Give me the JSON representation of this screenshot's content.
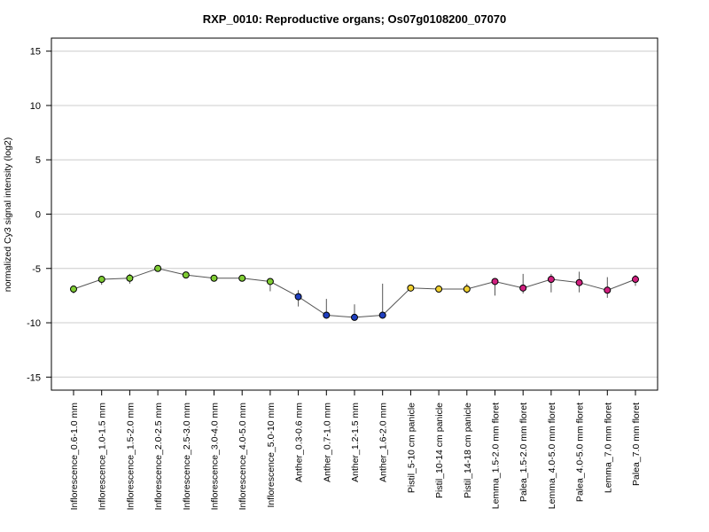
{
  "chart_data": {
    "type": "line",
    "title": "RXP_0010: Reproductive organs; Os07g0108200_07070",
    "xlabel": "",
    "ylabel": "normalized Cy3 signal intensity (log2)",
    "ylim": [
      -16.2,
      16.2
    ],
    "yticks": [
      15,
      10,
      5,
      0,
      -5,
      -10,
      -15
    ],
    "grid": true,
    "categories": [
      "Inflorescence_0.6-1.0 mm",
      "Inflorescence_1.0-1.5 mm",
      "Inflorescence_1.5-2.0 mm",
      "Inflorescence_2.0-2.5 mm",
      "Inflorescence_2.5-3.0 mm",
      "Inflorescence_3.0-4.0 mm",
      "Inflorescence_4.0-5.0 mm",
      "Inflorescence_5.0-10 mm",
      "Anther_0.3-0.6 mm",
      "Anther_0.7-1.0 mm",
      "Anther_1.2-1.5 mm",
      "Anther_1.6-2.0 mm",
      "Pistil_5-10 cm panicle",
      "Pistil_10-14 cm panicle",
      "Pistil_14-18 cm panicle",
      "Lemma_1.5-2.0 mm floret",
      "Palea_1.5-2.0 mm floret",
      "Lemma_4.0-5.0 mm floret",
      "Palea_4.0-5.0 mm floret",
      "Lemma_7.0 mm floret",
      "Palea_7.0 mm floret"
    ],
    "values": [
      -6.9,
      -6.0,
      -5.9,
      -5.0,
      -5.6,
      -5.9,
      -5.9,
      -6.2,
      -7.6,
      -9.3,
      -9.5,
      -9.3,
      -6.8,
      -6.9,
      -6.9,
      -6.2,
      -6.8,
      -6.0,
      -6.3,
      -7.0,
      -6.0
    ],
    "error_low": [
      -7.3,
      -6.5,
      -6.4,
      -5.1,
      -5.8,
      -6.0,
      -6.0,
      -7.1,
      -8.5,
      -9.6,
      -9.8,
      -9.5,
      -7.0,
      -7.0,
      -7.3,
      -7.5,
      -7.3,
      -7.2,
      -7.2,
      -7.7,
      -6.6
    ],
    "error_high": [
      -6.7,
      -5.7,
      -5.5,
      -4.8,
      -5.4,
      -5.7,
      -5.7,
      -5.9,
      -7.0,
      -7.8,
      -8.3,
      -6.4,
      -6.6,
      -6.8,
      -6.4,
      -5.9,
      -5.5,
      -5.5,
      -5.3,
      -5.8,
      -5.6
    ],
    "point_colors": [
      "#7fcc33",
      "#7fcc33",
      "#7fcc33",
      "#7fcc33",
      "#7fcc33",
      "#7fcc33",
      "#7fcc33",
      "#7fcc33",
      "#1f3fbf",
      "#1f3fbf",
      "#1f3fbf",
      "#1f3fbf",
      "#f0d030",
      "#f0d030",
      "#f0d030",
      "#d0207f",
      "#d0207f",
      "#d0207f",
      "#d0207f",
      "#d0207f",
      "#d0207f"
    ],
    "line_color": "#555555",
    "grid_color": "#cccccc"
  }
}
